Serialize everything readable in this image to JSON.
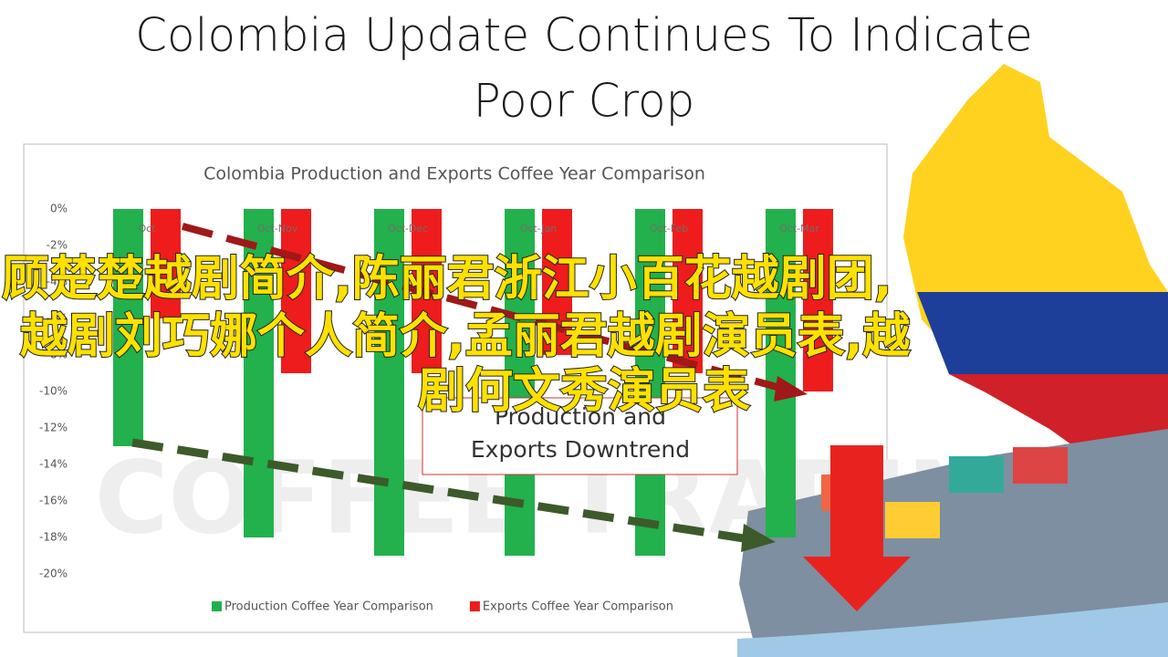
{
  "page_title": [
    "Colombia Update Continues To Indicate",
    "Poor Crop"
  ],
  "overlay_text": [
    "顾楚楚越剧简介,陈丽君浙江小百花越剧团,",
    "越剧刘巧娜个人简介,孟丽君越剧演员表,越",
    "剧何文秀演员表"
  ],
  "chart_data": {
    "type": "bar",
    "title": "Colombia Production and Exports Coffee Year Comparison",
    "categories": [
      "Oct",
      "Oct-Nov",
      "Oct-Dec",
      "Oct-Jan",
      "Oct-Feb",
      "Oct-Mar"
    ],
    "series": [
      {
        "name": "Production Coffee Year Comparison",
        "color": "#22b14c",
        "values": [
          -13,
          -18,
          -19,
          -19,
          -19,
          -18
        ]
      },
      {
        "name": "Exports Coffee Year Comparison",
        "color": "#ee1c1c",
        "values": [
          -6,
          -9,
          -9,
          -8,
          -9,
          -10
        ]
      }
    ],
    "ylim": [
      -20,
      0
    ],
    "yticks": [
      {
        "value": 0,
        "label": "0%"
      },
      {
        "value": -2,
        "label": "-2%"
      },
      {
        "value": -4,
        "label": "-4%"
      },
      {
        "value": -6,
        "label": "-6%"
      },
      {
        "value": -8,
        "label": "-8%"
      },
      {
        "value": -10,
        "label": "-10%"
      },
      {
        "value": -12,
        "label": "-12%"
      },
      {
        "value": -14,
        "label": "-14%"
      },
      {
        "value": -16,
        "label": "-16%"
      },
      {
        "value": -18,
        "label": "-18%"
      },
      {
        "value": -20,
        "label": "-20%"
      }
    ],
    "grid": false,
    "annotation": [
      "Production and",
      "Exports Downtrend"
    ]
  }
}
